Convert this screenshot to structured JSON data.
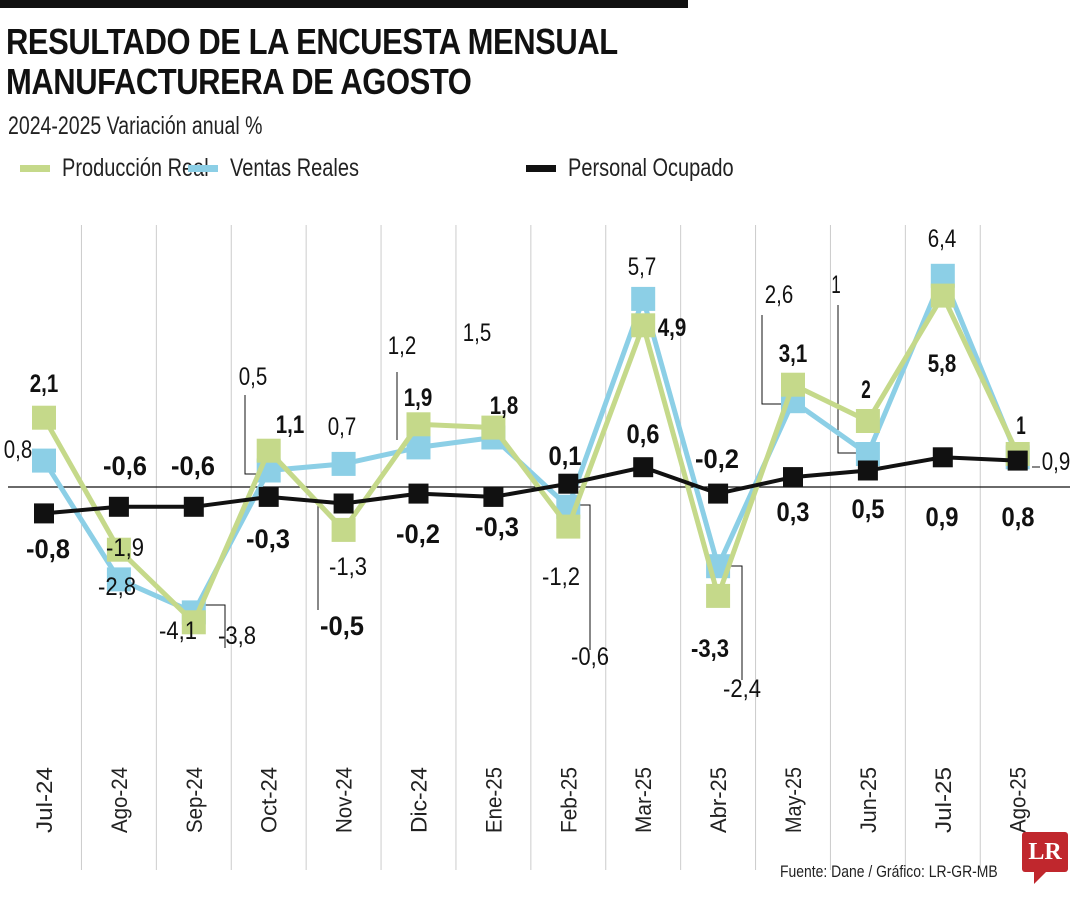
{
  "title_line1": "RESULTADO DE LA ENCUESTA MENSUAL",
  "title_line2": "MANUFACTURERA DE AGOSTO",
  "subtitle": "2024-2025  Variación anual %",
  "source": "Fuente: Dane / Gráfico: LR-GR-MB",
  "logo_text": "LR",
  "chart_data": {
    "type": "line",
    "title": "RESULTADO DE LA ENCUESTA MENSUAL MANUFACTURERA DE AGOSTO",
    "subtitle": "2024-2025  Variación anual %",
    "categories": [
      "Jul-24",
      "Ago-24",
      "Sep-24",
      "Oct-24",
      "Nov-24",
      "Dic-24",
      "Ene-25",
      "Feb-25",
      "Mar-25",
      "Abr-25",
      "May-25",
      "Jun-25",
      "Jul-25",
      "Ago-25"
    ],
    "series": [
      {
        "name": "Producción Real",
        "color": "#c5d98a",
        "values": [
          2.1,
          -1.9,
          -4.1,
          1.1,
          -1.3,
          1.9,
          1.8,
          -1.2,
          4.9,
          -3.3,
          3.1,
          2,
          5.8,
          1
        ],
        "labels": [
          "2,1",
          "-1,9",
          "-4,1",
          "1,1",
          "-1,3",
          "1,9",
          "1,8",
          "-1,2",
          "4,9",
          "-3,3",
          "3,1",
          "2",
          "5,8",
          "1"
        ]
      },
      {
        "name": "Ventas Reales",
        "color": "#8ccfe6",
        "values": [
          0.8,
          -2.8,
          -3.8,
          0.5,
          0.7,
          1.2,
          1.5,
          -0.6,
          5.7,
          -2.4,
          2.6,
          1,
          6.4,
          0.9
        ],
        "labels": [
          "0,8",
          "-2,8",
          "-3,8",
          "0,5",
          "0,7",
          "1,2",
          "1,5",
          "-0,6",
          "5,7",
          "-2,4",
          "2,6",
          "1",
          "6,4",
          "0,9"
        ]
      },
      {
        "name": "Personal Ocupado",
        "color": "#111111",
        "values": [
          -0.8,
          -0.6,
          -0.6,
          -0.3,
          -0.5,
          -0.2,
          -0.3,
          0.1,
          0.6,
          -0.2,
          0.3,
          0.5,
          0.9,
          0.8
        ],
        "labels": [
          "-0,8",
          "-0,6",
          "-0,6",
          "-0,3",
          "-0,5",
          "-0,2",
          "-0,3",
          "0,1",
          "0,6",
          "-0,2",
          "0,3",
          "0,5",
          "0,9",
          "0,8"
        ]
      }
    ],
    "ylim": [
      -11.5,
      8
    ],
    "grid": "vertical",
    "legend": "top-left",
    "xlabel": "",
    "ylabel": ""
  }
}
